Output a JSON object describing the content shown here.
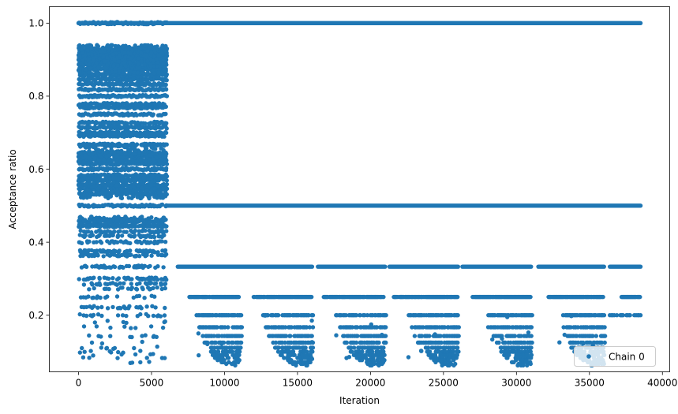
{
  "chart_data": {
    "type": "scatter",
    "xlabel": "Iteration",
    "ylabel": "Acceptance ratio",
    "xlim": [
      -2000,
      40500
    ],
    "ylim": [
      0.045,
      1.045
    ],
    "xticks": [
      0,
      5000,
      10000,
      15000,
      20000,
      25000,
      30000,
      35000,
      40000
    ],
    "xtick_labels": [
      "0",
      "5000",
      "10000",
      "15000",
      "20000",
      "25000",
      "30000",
      "35000",
      "40000"
    ],
    "yticks": [
      0.2,
      0.4,
      0.6,
      0.8,
      1.0
    ],
    "ytick_labels": [
      "0.2",
      "0.4",
      "0.6",
      "0.8",
      "1.0"
    ],
    "grid": false,
    "legend_position": "lower-right",
    "color": "#1f77b4",
    "series": [
      {
        "name": "Chain 0",
        "marker": "circle",
        "x_range": [
          0,
          38500
        ],
        "description_points": {
          "early_phase": {
            "x_end": 6000,
            "y_levels": [
              0.0714,
              0.0833,
              0.0909,
              0.1,
              0.111,
              0.125,
              0.143,
              0.167,
              0.182,
              0.2,
              0.222,
              0.25,
              0.273,
              0.286,
              0.3,
              0.333,
              0.364,
              0.375,
              0.4,
              0.417,
              0.429,
              0.444,
              0.455,
              0.462,
              0.5,
              0.533,
              0.545,
              0.556,
              0.571,
              0.583,
              0.6,
              0.615,
              0.625,
              0.636,
              0.643,
              0.667,
              0.692,
              0.7,
              0.714,
              0.727,
              0.75,
              0.769,
              0.778,
              0.8,
              0.818,
              0.833,
              0.846,
              0.857,
              0.875,
              0.889,
              0.9,
              0.909,
              0.917,
              0.923,
              0.929,
              1.0
            ]
          },
          "late_levels": [
            1.0,
            0.5,
            0.333,
            0.25,
            0.2,
            0.167,
            0.143,
            0.125,
            0.111,
            0.1,
            0.0909,
            0.0833,
            0.0769,
            0.0714,
            0.0667,
            0.0625
          ]
        }
      }
    ]
  }
}
